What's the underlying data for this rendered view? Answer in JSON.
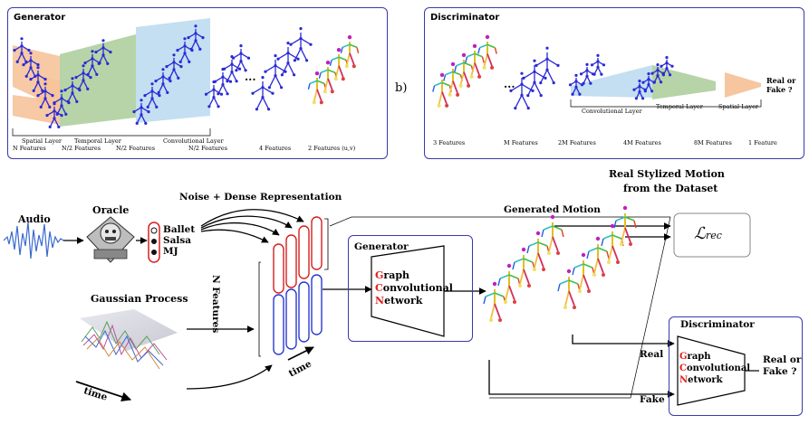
{
  "generator_panel": {
    "title": "Generator",
    "layers": [
      "Spatial Layer",
      "Temporal Layer",
      "Convolutional  Layer"
    ],
    "features": [
      "N Features",
      "N/2 Features",
      "N/2 Features",
      "N/2 Features",
      "4 Features",
      "2 Features (u,v)"
    ],
    "ellipsis": "..."
  },
  "panel_b_label": "b)",
  "discriminator_panel": {
    "title": "Discriminator",
    "layers": [
      "Convolutional  Layer",
      "Temporal Layer",
      "Spatial Layer"
    ],
    "features": [
      "3 Features",
      "M Features",
      "2M Features",
      "4M Features",
      "8M Features",
      "1 Feature"
    ],
    "output": "Real or Fake ?",
    "ellipsis": "..."
  },
  "pipeline": {
    "audio_label": "Audio",
    "oracle_label": "Oracle",
    "styles": [
      "Ballet",
      "Salsa",
      "MJ"
    ],
    "noise_label": "Noise + Dense Representation",
    "n_features_label": "N Features",
    "gaussian_label": "Gaussian  Process",
    "time_label_left": "time",
    "time_label_columns": "time",
    "generator_label": "Generator",
    "gcn_letters": [
      "G",
      "C",
      "N"
    ],
    "gcn_rest": [
      "raph",
      "onvolutional",
      "etwork"
    ],
    "generated_motion_label": "Generated Motion",
    "real_stylized_label_1": "Real Stylized Motion",
    "real_stylized_label_2": "from the Dataset",
    "loss_label": "ℒrec",
    "loss_main": "ℒ",
    "loss_sub": "rec",
    "discriminator_label": "Discriminator",
    "real_label": "Real",
    "fake_label": "Fake",
    "output_label_1": "Real or",
    "output_label_2": "Fake ?"
  },
  "colors": {
    "panel_border": "#3a3aa8",
    "skeleton_blue": "#2a2ad6",
    "orange_layer": "#f6c39b",
    "green_layer": "#a9cc98",
    "blue_layer": "#bcdcef",
    "gcn_red": "#e0201c",
    "dot_black": "#111111",
    "column_red": "#d62020",
    "column_blue": "#2a3ad0"
  }
}
